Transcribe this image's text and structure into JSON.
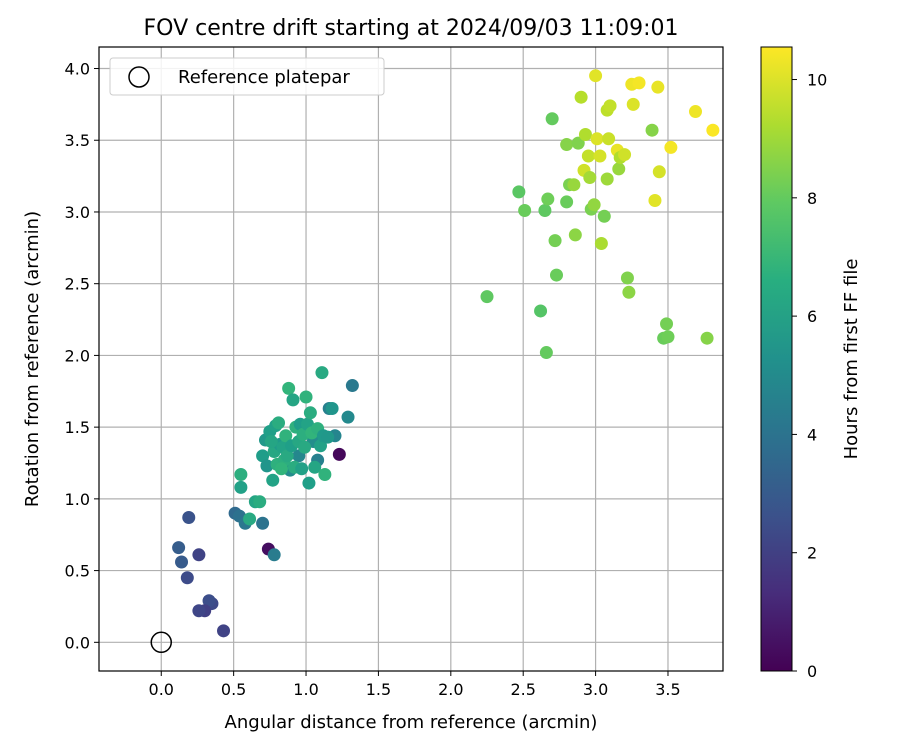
{
  "chart_data": {
    "type": "scatter",
    "title": "FOV centre drift starting at 2024/09/03 11:09:01",
    "xlabel": "Angular distance from reference (arcmin)",
    "ylabel": "Rotation from reference (arcmin)",
    "xlim": [
      -0.43,
      3.88
    ],
    "ylim": [
      -0.2,
      4.15
    ],
    "xticks": [
      "0.0",
      "0.5",
      "1.0",
      "1.5",
      "2.0",
      "2.5",
      "3.0",
      "3.5"
    ],
    "yticks": [
      "0.0",
      "0.5",
      "1.0",
      "1.5",
      "2.0",
      "2.5",
      "3.0",
      "3.5",
      "4.0"
    ],
    "grid": true,
    "legend": {
      "position": "top-left",
      "entries": [
        "Reference platepar"
      ]
    },
    "colorbar": {
      "label": "Hours from first FF file",
      "range": [
        0,
        10.55
      ],
      "colormap": "viridis",
      "ticks": [
        "0",
        "2",
        "4",
        "6",
        "8",
        "10"
      ]
    },
    "reference_point": {
      "x": 0.0,
      "y": 0.0
    },
    "points": [
      [
        1.23,
        1.31,
        0.2
      ],
      [
        0.74,
        0.65,
        0.4
      ],
      [
        0.43,
        0.08,
        2.1
      ],
      [
        0.35,
        0.27,
        2.3
      ],
      [
        0.33,
        0.29,
        2.5
      ],
      [
        0.3,
        0.22,
        2.0
      ],
      [
        0.26,
        0.22,
        2.2
      ],
      [
        0.18,
        0.45,
        2.4
      ],
      [
        0.26,
        0.61,
        2.1
      ],
      [
        0.19,
        0.87,
        2.7
      ],
      [
        0.12,
        0.66,
        3.1
      ],
      [
        0.14,
        0.56,
        3.0
      ],
      [
        0.51,
        0.9,
        3.6
      ],
      [
        0.54,
        0.88,
        3.9
      ],
      [
        0.58,
        0.83,
        4.2
      ],
      [
        0.7,
        0.83,
        4.0
      ],
      [
        0.78,
        0.61,
        4.4
      ],
      [
        1.32,
        1.79,
        4.3
      ],
      [
        1.16,
        1.63,
        4.6
      ],
      [
        1.29,
        1.57,
        5.0
      ],
      [
        1.2,
        1.44,
        4.8
      ],
      [
        1.08,
        1.27,
        4.6
      ],
      [
        1.05,
        1.4,
        5.2
      ],
      [
        0.95,
        1.3,
        4.9
      ],
      [
        0.89,
        1.2,
        5.1
      ],
      [
        0.55,
        1.08,
        6.0
      ],
      [
        0.55,
        1.17,
        6.6
      ],
      [
        0.61,
        0.86,
        6.4
      ],
      [
        0.65,
        0.98,
        6.2
      ],
      [
        0.68,
        0.98,
        6.5
      ],
      [
        0.7,
        1.3,
        5.8
      ],
      [
        0.72,
        1.41,
        5.6
      ],
      [
        0.73,
        1.23,
        5.5
      ],
      [
        0.75,
        1.47,
        5.9
      ],
      [
        0.77,
        1.13,
        6.1
      ],
      [
        0.78,
        1.33,
        6.3
      ],
      [
        0.79,
        1.51,
        6.0
      ],
      [
        0.8,
        1.24,
        6.7
      ],
      [
        0.81,
        1.53,
        6.5
      ],
      [
        0.82,
        1.38,
        5.7
      ],
      [
        0.84,
        1.36,
        6.1
      ],
      [
        0.85,
        1.27,
        6.6
      ],
      [
        0.86,
        1.44,
        6.8
      ],
      [
        0.87,
        1.3,
        6.4
      ],
      [
        0.88,
        1.77,
        6.9
      ],
      [
        0.9,
        1.37,
        5.9
      ],
      [
        0.91,
        1.69,
        6.2
      ],
      [
        0.92,
        1.22,
        6.5
      ],
      [
        0.93,
        1.5,
        6.7
      ],
      [
        0.95,
        1.4,
        6.3
      ],
      [
        0.96,
        1.52,
        5.8
      ],
      [
        0.97,
        1.21,
        6.0
      ],
      [
        0.98,
        1.45,
        6.6
      ],
      [
        0.99,
        1.36,
        6.4
      ],
      [
        1.0,
        1.71,
        6.8
      ],
      [
        1.01,
        1.52,
        6.1
      ],
      [
        1.02,
        1.11,
        5.9
      ],
      [
        1.03,
        1.6,
        6.5
      ],
      [
        1.04,
        1.46,
        6.9
      ],
      [
        1.06,
        1.22,
        6.2
      ],
      [
        1.08,
        1.49,
        6.7
      ],
      [
        1.1,
        1.37,
        6.0
      ],
      [
        1.11,
        1.88,
        6.4
      ],
      [
        1.12,
        1.44,
        5.7
      ],
      [
        1.13,
        1.17,
        6.8
      ],
      [
        1.15,
        1.43,
        5.6
      ],
      [
        1.18,
        1.63,
        5.5
      ],
      [
        0.76,
        1.4,
        6.2
      ],
      [
        0.83,
        1.21,
        6.9
      ],
      [
        2.25,
        2.41,
        7.9
      ],
      [
        2.47,
        3.14,
        7.8
      ],
      [
        2.51,
        3.01,
        8.1
      ],
      [
        2.62,
        2.31,
        7.7
      ],
      [
        2.65,
        3.01,
        7.9
      ],
      [
        2.66,
        2.02,
        8.0
      ],
      [
        2.67,
        3.09,
        8.2
      ],
      [
        2.7,
        3.65,
        8.0
      ],
      [
        2.72,
        2.8,
        8.3
      ],
      [
        2.73,
        2.56,
        8.1
      ],
      [
        2.8,
        3.47,
        8.6
      ],
      [
        2.8,
        3.07,
        8.1
      ],
      [
        2.82,
        3.19,
        8.4
      ],
      [
        2.85,
        3.19,
        8.9
      ],
      [
        2.86,
        2.84,
        8.7
      ],
      [
        2.88,
        3.48,
        8.5
      ],
      [
        2.9,
        3.8,
        9.4
      ],
      [
        2.92,
        3.29,
        9.8
      ],
      [
        2.93,
        3.54,
        9.3
      ],
      [
        2.95,
        3.39,
        9.6
      ],
      [
        2.96,
        3.24,
        9.1
      ],
      [
        2.97,
        3.02,
        8.4
      ],
      [
        2.99,
        3.05,
        8.8
      ],
      [
        3.0,
        3.95,
        10.1
      ],
      [
        3.01,
        3.51,
        10.0
      ],
      [
        3.03,
        3.39,
        9.9
      ],
      [
        3.04,
        2.78,
        9.2
      ],
      [
        3.06,
        2.97,
        8.3
      ],
      [
        3.08,
        3.71,
        9.5
      ],
      [
        3.08,
        3.23,
        9.0
      ],
      [
        3.09,
        3.51,
        9.7
      ],
      [
        3.1,
        3.74,
        9.6
      ],
      [
        3.15,
        3.43,
        10.2
      ],
      [
        3.16,
        3.3,
        8.9
      ],
      [
        3.17,
        3.38,
        9.3
      ],
      [
        3.2,
        3.4,
        9.8
      ],
      [
        3.22,
        2.54,
        8.5
      ],
      [
        3.23,
        2.44,
        8.7
      ],
      [
        3.25,
        3.89,
        10.3
      ],
      [
        3.26,
        3.75,
        10.0
      ],
      [
        3.3,
        3.9,
        10.4
      ],
      [
        3.39,
        3.57,
        8.6
      ],
      [
        3.41,
        3.08,
        10.1
      ],
      [
        3.43,
        3.87,
        10.2
      ],
      [
        3.44,
        3.28,
        9.9
      ],
      [
        3.47,
        2.12,
        8.1
      ],
      [
        3.49,
        2.22,
        8.3
      ],
      [
        3.5,
        2.13,
        8.2
      ],
      [
        3.52,
        3.45,
        10.4
      ],
      [
        3.69,
        3.7,
        10.3
      ],
      [
        3.77,
        2.12,
        8.6
      ],
      [
        3.81,
        3.57,
        10.5
      ]
    ]
  }
}
